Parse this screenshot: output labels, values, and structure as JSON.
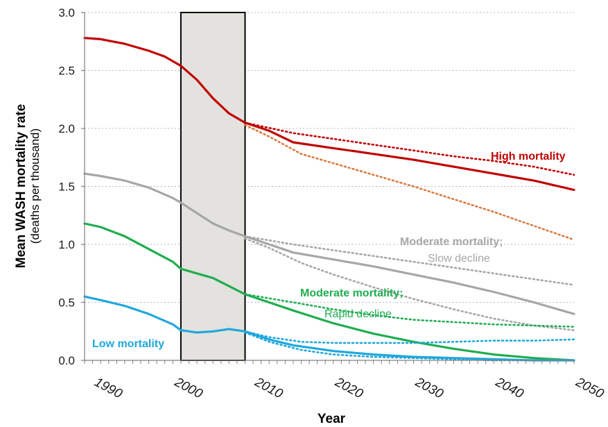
{
  "chart_data": {
    "type": "line",
    "xlabel": "Year",
    "ylabel": "Mean WASH mortality rate",
    "ylabel_sub": "(deaths per thousand)",
    "xlim": [
      1989,
      2050
    ],
    "ylim": [
      0,
      3.0
    ],
    "yticks": [
      "0.0",
      "0.5",
      "1.0",
      "1.5",
      "2.0",
      "2.5",
      "3.0"
    ],
    "xticks": [
      "1990",
      "2000",
      "2010",
      "2020",
      "2030",
      "2040",
      "2050"
    ],
    "grid": "horizontal dotted",
    "highlight_period": [
      2001,
      2009
    ],
    "series": [
      {
        "group": "high",
        "color": "#c00000",
        "style": "solid",
        "x": [
          1989,
          1991,
          1994,
          1997,
          1999,
          2001,
          2003,
          2005,
          2007,
          2009,
          2012,
          2015,
          2020,
          2025,
          2030,
          2035,
          2040,
          2045,
          2050
        ],
        "y": [
          2.78,
          2.77,
          2.73,
          2.67,
          2.62,
          2.54,
          2.42,
          2.26,
          2.13,
          2.05,
          1.98,
          1.88,
          1.83,
          1.78,
          1.73,
          1.67,
          1.61,
          1.55,
          1.47
        ]
      },
      {
        "group": "high",
        "color": "#c00000",
        "style": "dotted",
        "x": [
          2009,
          2015,
          2020,
          2025,
          2030,
          2035,
          2040,
          2045,
          2050
        ],
        "y": [
          2.05,
          1.96,
          1.91,
          1.86,
          1.81,
          1.76,
          1.72,
          1.67,
          1.6
        ]
      },
      {
        "group": "high",
        "color": "#d97a3f",
        "style": "dotted",
        "x": [
          2009,
          2012,
          2016,
          2020,
          2025,
          2030,
          2035,
          2040,
          2045,
          2050
        ],
        "y": [
          2.03,
          1.93,
          1.78,
          1.7,
          1.6,
          1.5,
          1.39,
          1.28,
          1.16,
          1.04
        ]
      },
      {
        "group": "moderate-slow",
        "color": "#a6a6a6",
        "style": "solid",
        "x": [
          1989,
          1991,
          1994,
          1997,
          2000,
          2001,
          2003,
          2005,
          2007,
          2009,
          2012,
          2015,
          2020,
          2025,
          2030,
          2035,
          2040,
          2045,
          2050
        ],
        "y": [
          1.61,
          1.59,
          1.55,
          1.49,
          1.4,
          1.36,
          1.27,
          1.18,
          1.12,
          1.07,
          1.0,
          0.93,
          0.87,
          0.81,
          0.74,
          0.67,
          0.59,
          0.5,
          0.4
        ]
      },
      {
        "group": "moderate-slow",
        "color": "#a6a6a6",
        "style": "dotted",
        "x": [
          2009,
          2015,
          2020,
          2025,
          2030,
          2035,
          2040,
          2045,
          2050
        ],
        "y": [
          1.07,
          1.0,
          0.95,
          0.9,
          0.85,
          0.8,
          0.75,
          0.7,
          0.65
        ]
      },
      {
        "group": "moderate-slow",
        "color": "#a6a6a6",
        "style": "dotted",
        "x": [
          2009,
          2012,
          2016,
          2020,
          2025,
          2030,
          2035,
          2040,
          2045,
          2050
        ],
        "y": [
          1.05,
          0.97,
          0.84,
          0.74,
          0.63,
          0.53,
          0.44,
          0.36,
          0.3,
          0.26
        ]
      },
      {
        "group": "moderate-rapid",
        "color": "#1fad50",
        "style": "solid",
        "x": [
          1989,
          1991,
          1994,
          1997,
          2000,
          2001,
          2003,
          2005,
          2007,
          2009,
          2012,
          2015,
          2020,
          2025,
          2030,
          2035,
          2040,
          2045,
          2050
        ],
        "y": [
          1.18,
          1.15,
          1.07,
          0.96,
          0.85,
          0.79,
          0.75,
          0.71,
          0.64,
          0.57,
          0.5,
          0.43,
          0.32,
          0.23,
          0.16,
          0.1,
          0.05,
          0.02,
          0.0
        ]
      },
      {
        "group": "moderate-rapid",
        "color": "#1fad50",
        "style": "dotted",
        "x": [
          2009,
          2015,
          2020,
          2025,
          2030,
          2035,
          2040,
          2045,
          2050
        ],
        "y": [
          0.57,
          0.5,
          0.44,
          0.39,
          0.35,
          0.33,
          0.31,
          0.3,
          0.29
        ]
      },
      {
        "group": "low",
        "color": "#1fa7dd",
        "style": "solid",
        "x": [
          1989,
          1991,
          1994,
          1997,
          2000,
          2001,
          2003,
          2005,
          2007,
          2009,
          2012,
          2015,
          2020,
          2025,
          2030,
          2035,
          2040,
          2045,
          2050
        ],
        "y": [
          0.55,
          0.52,
          0.47,
          0.4,
          0.31,
          0.26,
          0.24,
          0.25,
          0.27,
          0.25,
          0.18,
          0.13,
          0.08,
          0.05,
          0.03,
          0.02,
          0.01,
          0.0,
          0.0
        ]
      },
      {
        "group": "low",
        "color": "#1fa7dd",
        "style": "dotted",
        "x": [
          2009,
          2012,
          2016,
          2020,
          2025,
          2030,
          2035,
          2040,
          2045,
          2050
        ],
        "y": [
          0.25,
          0.2,
          0.16,
          0.15,
          0.15,
          0.15,
          0.16,
          0.17,
          0.17,
          0.18
        ]
      },
      {
        "group": "low",
        "color": "#1fa7dd",
        "style": "dotted",
        "x": [
          2009,
          2012,
          2016,
          2020,
          2025,
          2030,
          2035,
          2040,
          2045,
          2050
        ],
        "y": [
          0.24,
          0.16,
          0.09,
          0.05,
          0.03,
          0.02,
          0.01,
          0.0,
          0.0,
          0.0
        ]
      }
    ],
    "annotations": [
      {
        "text": "High mortality",
        "color": "#c00000",
        "bold": true
      },
      {
        "text": "Moderate mortality;",
        "color": "#a6a6a6",
        "bold": true
      },
      {
        "text": "Slow decline",
        "color": "#a6a6a6",
        "bold": false
      },
      {
        "text": "Moderate mortality;",
        "color": "#1fad50",
        "bold": true
      },
      {
        "text": "Rapid decline",
        "color": "#1fad50",
        "bold": false
      },
      {
        "text": "Low mortality",
        "color": "#1fa7dd",
        "bold": true
      }
    ]
  }
}
